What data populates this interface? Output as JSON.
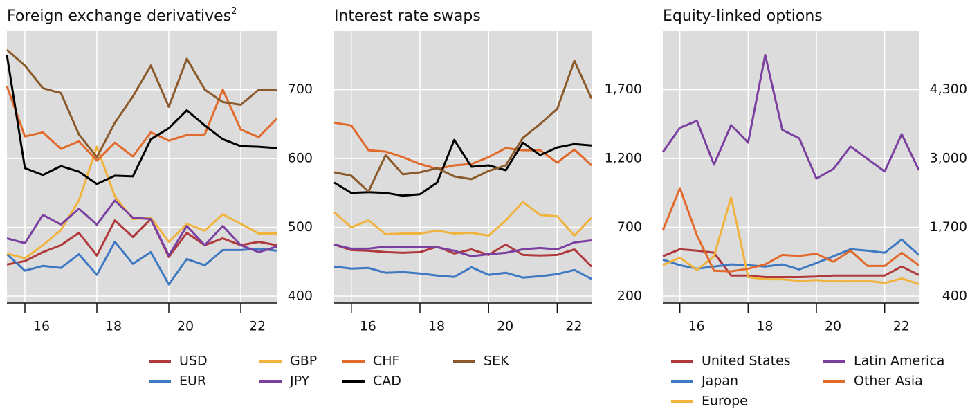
{
  "chart_data": [
    {
      "type": "line",
      "title": "Foreign exchange derivatives",
      "title_superscript": "2",
      "x": [
        15.5,
        16,
        16.5,
        17,
        17.5,
        18,
        18.5,
        19,
        19.5,
        20,
        20.5,
        21,
        21.5,
        22,
        22.5,
        23
      ],
      "xlim": [
        15.5,
        23
      ],
      "xticks": [
        16,
        18,
        20,
        22
      ],
      "ylim": [
        390,
        785
      ],
      "yticks": [
        400,
        500,
        600,
        700
      ],
      "grid": true,
      "series": [
        {
          "name": "USD",
          "color": "#b0393b",
          "values": [
            446,
            451,
            464,
            474,
            492,
            459,
            510,
            486,
            512,
            457,
            492,
            474,
            484,
            474,
            479,
            474
          ]
        },
        {
          "name": "EUR",
          "color": "#3d78c1",
          "values": [
            461,
            437,
            444,
            441,
            461,
            431,
            479,
            447,
            464,
            417,
            454,
            445,
            467,
            467,
            469,
            466
          ]
        },
        {
          "name": "GBP",
          "color": "#f0b33d",
          "values": [
            462,
            455,
            474,
            496,
            539,
            617,
            545,
            512,
            514,
            479,
            505,
            495,
            519,
            505,
            491,
            491
          ]
        },
        {
          "name": "JPY",
          "color": "#7b3fa0",
          "values": [
            484,
            477,
            518,
            504,
            527,
            504,
            539,
            514,
            512,
            459,
            502,
            474,
            502,
            474,
            464,
            472
          ]
        },
        {
          "name": "CHF",
          "color": "#e0692b",
          "values": [
            705,
            632,
            638,
            614,
            625,
            597,
            623,
            603,
            638,
            626,
            634,
            635,
            700,
            642,
            631,
            658
          ]
        },
        {
          "name": "CAD",
          "color": "#000000",
          "values": [
            750,
            586,
            576,
            589,
            581,
            563,
            575,
            574,
            628,
            644,
            670,
            648,
            628,
            618,
            617,
            615
          ]
        },
        {
          "name": "SEK",
          "color": "#8b5a2b",
          "values": [
            758,
            735,
            702,
            695,
            635,
            602,
            652,
            690,
            735,
            675,
            745,
            700,
            682,
            678,
            700,
            699
          ]
        }
      ]
    },
    {
      "type": "line",
      "title": "Interest rate swaps",
      "x": [
        15.5,
        16,
        16.5,
        17,
        17.5,
        18,
        18.5,
        19,
        19.5,
        20,
        20.5,
        21,
        21.5,
        22,
        22.5,
        23
      ],
      "xlim": [
        15.5,
        23
      ],
      "xticks": [
        16,
        18,
        20,
        22
      ],
      "ylim": [
        150,
        2125
      ],
      "yticks": [
        200,
        {
          "value": 700,
          "label": "700"
        },
        {
          "value": 1200,
          "label": "1,200"
        },
        {
          "value": 1700,
          "label": "1,700"
        }
      ],
      "grid": true,
      "series": [
        {
          "color": "#b0393b",
          "values": [
            575,
            535,
            530,
            520,
            515,
            520,
            560,
            510,
            540,
            500,
            575,
            500,
            495,
            500,
            540,
            415
          ]
        },
        {
          "color": "#3d78c1",
          "values": [
            415,
            400,
            405,
            370,
            375,
            365,
            350,
            340,
            410,
            355,
            370,
            335,
            345,
            360,
            390,
            325
          ]
        },
        {
          "color": "#f0b33d",
          "values": [
            810,
            700,
            750,
            650,
            655,
            655,
            675,
            655,
            660,
            640,
            750,
            885,
            790,
            780,
            640,
            770
          ]
        },
        {
          "color": "#7b3fa0",
          "values": [
            575,
            545,
            545,
            560,
            555,
            555,
            555,
            530,
            490,
            505,
            515,
            540,
            550,
            540,
            590,
            605
          ]
        },
        {
          "color": "#e0692b",
          "values": [
            1460,
            1440,
            1260,
            1250,
            1210,
            1160,
            1125,
            1150,
            1160,
            1210,
            1275,
            1260,
            1260,
            1170,
            1265,
            1150
          ]
        },
        {
          "color": "#000000",
          "values": [
            1025,
            950,
            955,
            950,
            930,
            940,
            1025,
            1335,
            1140,
            1150,
            1115,
            1315,
            1225,
            1280,
            1305,
            1295
          ]
        },
        {
          "color": "#8b5a2b",
          "values": [
            1100,
            1075,
            960,
            1225,
            1085,
            1100,
            1130,
            1070,
            1050,
            1110,
            1150,
            1350,
            1450,
            1560,
            1910,
            1635
          ]
        }
      ]
    },
    {
      "type": "line",
      "title": "Equity-linked options",
      "x": [
        15.5,
        16,
        16.5,
        17,
        17.5,
        18,
        18.5,
        19,
        19.5,
        20,
        20.5,
        21,
        21.5,
        22,
        22.5,
        23
      ],
      "xlim": [
        15.5,
        23
      ],
      "xticks": [
        16,
        18,
        20,
        22
      ],
      "ylim": [
        270,
        5405
      ],
      "yticks": [
        400,
        {
          "value": 1700,
          "label": "1,700"
        },
        {
          "value": 3000,
          "label": "3,000"
        },
        {
          "value": 4300,
          "label": "4,300"
        }
      ],
      "grid": true,
      "series": [
        {
          "name": "United States",
          "color": "#b0393b",
          "values": [
            1155,
            1285,
            1260,
            1220,
            790,
            790,
            760,
            760,
            760,
            770,
            790,
            790,
            790,
            790,
            960,
            800
          ]
        },
        {
          "name": "Japan",
          "color": "#3d78c1",
          "values": [
            1090,
            985,
            920,
            960,
            1000,
            985,
            960,
            1000,
            905,
            1025,
            1155,
            1285,
            1260,
            1220,
            1470,
            1180
          ]
        },
        {
          "name": "Europe",
          "color": "#f0b33d",
          "values": [
            985,
            1130,
            895,
            1155,
            2270,
            760,
            720,
            720,
            690,
            705,
            680,
            680,
            690,
            650,
            735,
            630
          ]
        },
        {
          "name": "Latin America",
          "color": "#7b3fa0",
          "values": [
            3120,
            3580,
            3710,
            2885,
            3630,
            3300,
            4955,
            3540,
            3380,
            2620,
            2805,
            3225,
            2990,
            2755,
            3460,
            2780
          ]
        },
        {
          "name": "Other Asia",
          "color": "#e0692b",
          "values": [
            1640,
            2440,
            1550,
            880,
            870,
            920,
            1000,
            1180,
            1160,
            1200,
            1050,
            1260,
            970,
            970,
            1220,
            985
          ]
        }
      ]
    }
  ]
}
